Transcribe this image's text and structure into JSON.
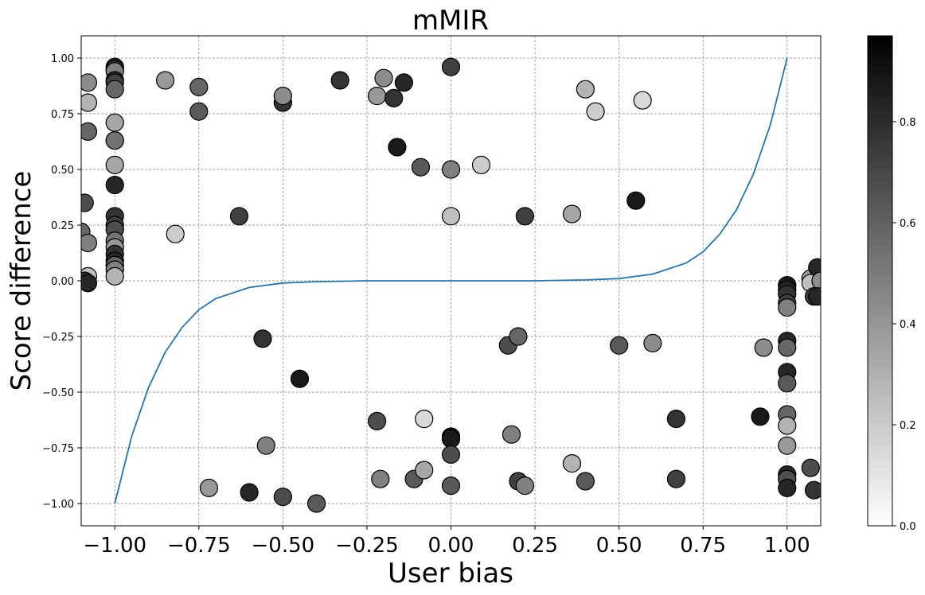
{
  "chart_data": {
    "type": "scatter",
    "title": "mMIR",
    "xlabel": "User bias",
    "ylabel": "Score difference",
    "xlim": [
      -1.1,
      1.1
    ],
    "ylim": [
      -1.1,
      1.1
    ],
    "xticks": [
      -1.0,
      -0.75,
      -0.5,
      -0.25,
      0.0,
      0.25,
      0.5,
      0.75,
      1.0
    ],
    "xtick_labels": [
      "−1.00",
      "−0.75",
      "−0.50",
      "−0.25",
      "0.00",
      "0.25",
      "0.50",
      "0.75",
      "1.00"
    ],
    "yticks": [
      1.0,
      0.75,
      0.5,
      0.25,
      0.0,
      -0.25,
      -0.5,
      -0.75,
      -1.0
    ],
    "ytick_labels": [
      "1.00",
      "0.75",
      "0.50",
      "0.25",
      "0.00",
      "−0.25",
      "−0.50",
      "−0.75",
      "−1.00"
    ],
    "grid": true,
    "colorbar": {
      "range": [
        0.0,
        0.97
      ],
      "colormap": "Greys",
      "ticks": [
        0.0,
        0.2,
        0.4,
        0.6,
        0.8
      ],
      "tick_labels": [
        "0.0",
        "0.2",
        "0.4",
        "0.6",
        "0.8"
      ]
    },
    "curve": {
      "color": "#1f77b4",
      "x_range": [
        -1.0,
        1.0
      ],
      "points": [
        [
          -1.0,
          -1.0
        ],
        [
          -0.95,
          -0.7
        ],
        [
          -0.9,
          -0.48
        ],
        [
          -0.85,
          -0.32
        ],
        [
          -0.8,
          -0.21
        ],
        [
          -0.75,
          -0.13
        ],
        [
          -0.7,
          -0.08
        ],
        [
          -0.6,
          -0.03
        ],
        [
          -0.5,
          -0.01
        ],
        [
          -0.4,
          -0.004
        ],
        [
          -0.25,
          0.0
        ],
        [
          0.0,
          0.0
        ],
        [
          0.25,
          0.0
        ],
        [
          0.4,
          0.004
        ],
        [
          0.5,
          0.01
        ],
        [
          0.6,
          0.03
        ],
        [
          0.7,
          0.08
        ],
        [
          0.75,
          0.13
        ],
        [
          0.8,
          0.21
        ],
        [
          0.85,
          0.32
        ],
        [
          0.9,
          0.48
        ],
        [
          0.95,
          0.7
        ],
        [
          1.0,
          1.0
        ]
      ]
    },
    "points": [
      {
        "x": -1.0,
        "y": 0.96,
        "c": 0.85
      },
      {
        "x": -1.0,
        "y": 0.95,
        "c": 0.8
      },
      {
        "x": -1.0,
        "y": 0.94,
        "c": 0.5
      },
      {
        "x": -1.0,
        "y": 0.9,
        "c": 0.85
      },
      {
        "x": -1.0,
        "y": 0.89,
        "c": 0.75
      },
      {
        "x": -1.0,
        "y": 0.86,
        "c": 0.6
      },
      {
        "x": -1.0,
        "y": 0.71,
        "c": 0.35
      },
      {
        "x": -1.0,
        "y": 0.63,
        "c": 0.75
      },
      {
        "x": -1.0,
        "y": 0.63,
        "c": 0.55
      },
      {
        "x": -1.0,
        "y": 0.52,
        "c": 0.35
      },
      {
        "x": -1.0,
        "y": 0.43,
        "c": 0.85
      },
      {
        "x": -1.0,
        "y": 0.29,
        "c": 0.8
      },
      {
        "x": -1.0,
        "y": 0.25,
        "c": 0.75
      },
      {
        "x": -1.0,
        "y": 0.23,
        "c": 0.7
      },
      {
        "x": -1.0,
        "y": 0.18,
        "c": 0.55
      },
      {
        "x": -1.0,
        "y": 0.15,
        "c": 0.4
      },
      {
        "x": -1.0,
        "y": 0.12,
        "c": 0.8
      },
      {
        "x": -1.0,
        "y": 0.09,
        "c": 0.85
      },
      {
        "x": -1.0,
        "y": 0.07,
        "c": 0.6
      },
      {
        "x": -1.0,
        "y": 0.05,
        "c": 0.5
      },
      {
        "x": -1.0,
        "y": 0.02,
        "c": 0.3
      },
      {
        "x": -1.08,
        "y": 0.89,
        "c": 0.45
      },
      {
        "x": -1.08,
        "y": 0.8,
        "c": 0.3
      },
      {
        "x": -1.08,
        "y": 0.67,
        "c": 0.6
      },
      {
        "x": -1.09,
        "y": 0.35,
        "c": 0.7
      },
      {
        "x": -1.1,
        "y": 0.22,
        "c": 0.6
      },
      {
        "x": -1.08,
        "y": 0.17,
        "c": 0.5
      },
      {
        "x": -1.08,
        "y": 0.02,
        "c": 0.25
      },
      {
        "x": -1.09,
        "y": 0.0,
        "c": 0.8
      },
      {
        "x": -1.08,
        "y": -0.01,
        "c": 0.85
      },
      {
        "x": -0.85,
        "y": 0.9,
        "c": 0.4
      },
      {
        "x": -0.82,
        "y": 0.21,
        "c": 0.2
      },
      {
        "x": -0.75,
        "y": 0.87,
        "c": 0.6
      },
      {
        "x": -0.75,
        "y": 0.76,
        "c": 0.65
      },
      {
        "x": -0.63,
        "y": 0.29,
        "c": 0.75
      },
      {
        "x": -0.5,
        "y": 0.8,
        "c": 0.8
      },
      {
        "x": -0.5,
        "y": 0.83,
        "c": 0.45
      },
      {
        "x": -0.33,
        "y": 0.9,
        "c": 0.8
      },
      {
        "x": -0.22,
        "y": 0.83,
        "c": 0.4
      },
      {
        "x": -0.2,
        "y": 0.91,
        "c": 0.45
      },
      {
        "x": -0.17,
        "y": 0.82,
        "c": 0.8
      },
      {
        "x": -0.14,
        "y": 0.89,
        "c": 0.85
      },
      {
        "x": -0.16,
        "y": 0.6,
        "c": 0.9
      },
      {
        "x": -0.09,
        "y": 0.51,
        "c": 0.65
      },
      {
        "x": 0.0,
        "y": 0.96,
        "c": 0.75
      },
      {
        "x": 0.0,
        "y": 0.5,
        "c": 0.5
      },
      {
        "x": 0.0,
        "y": 0.29,
        "c": 0.25
      },
      {
        "x": 0.09,
        "y": 0.52,
        "c": 0.2
      },
      {
        "x": 0.22,
        "y": 0.29,
        "c": 0.75
      },
      {
        "x": 0.36,
        "y": 0.3,
        "c": 0.35
      },
      {
        "x": 0.4,
        "y": 0.86,
        "c": 0.3
      },
      {
        "x": 0.43,
        "y": 0.76,
        "c": 0.2
      },
      {
        "x": 0.55,
        "y": 0.36,
        "c": 0.9
      },
      {
        "x": 0.57,
        "y": 0.81,
        "c": 0.15
      },
      {
        "x": -0.56,
        "y": -0.26,
        "c": 0.8
      },
      {
        "x": -0.45,
        "y": -0.44,
        "c": 0.9
      },
      {
        "x": -0.72,
        "y": -0.93,
        "c": 0.4
      },
      {
        "x": -0.6,
        "y": -0.95,
        "c": 0.85
      },
      {
        "x": -0.55,
        "y": -0.74,
        "c": 0.5
      },
      {
        "x": -0.5,
        "y": -0.97,
        "c": 0.7
      },
      {
        "x": -0.4,
        "y": -1.0,
        "c": 0.65
      },
      {
        "x": -0.22,
        "y": -0.63,
        "c": 0.7
      },
      {
        "x": -0.21,
        "y": -0.89,
        "c": 0.5
      },
      {
        "x": -0.11,
        "y": -0.89,
        "c": 0.65
      },
      {
        "x": -0.08,
        "y": -0.85,
        "c": 0.35
      },
      {
        "x": -0.08,
        "y": -0.62,
        "c": 0.15
      },
      {
        "x": 0.0,
        "y": -0.7,
        "c": 0.95
      },
      {
        "x": 0.0,
        "y": -0.71,
        "c": 0.9
      },
      {
        "x": 0.0,
        "y": -0.78,
        "c": 0.7
      },
      {
        "x": 0.0,
        "y": -0.92,
        "c": 0.65
      },
      {
        "x": 0.17,
        "y": -0.29,
        "c": 0.7
      },
      {
        "x": 0.2,
        "y": -0.25,
        "c": 0.6
      },
      {
        "x": 0.18,
        "y": -0.69,
        "c": 0.5
      },
      {
        "x": 0.2,
        "y": -0.9,
        "c": 0.75
      },
      {
        "x": 0.22,
        "y": -0.92,
        "c": 0.5
      },
      {
        "x": 0.36,
        "y": -0.82,
        "c": 0.3
      },
      {
        "x": 0.4,
        "y": -0.9,
        "c": 0.65
      },
      {
        "x": 0.5,
        "y": -0.29,
        "c": 0.65
      },
      {
        "x": 0.6,
        "y": -0.28,
        "c": 0.45
      },
      {
        "x": 0.67,
        "y": -0.62,
        "c": 0.8
      },
      {
        "x": 0.67,
        "y": -0.89,
        "c": 0.75
      },
      {
        "x": 0.92,
        "y": -0.61,
        "c": 0.9
      },
      {
        "x": 0.93,
        "y": -0.3,
        "c": 0.45
      },
      {
        "x": 1.0,
        "y": -0.02,
        "c": 0.9
      },
      {
        "x": 1.0,
        "y": -0.04,
        "c": 0.85
      },
      {
        "x": 1.0,
        "y": -0.06,
        "c": 0.8
      },
      {
        "x": 1.0,
        "y": -0.1,
        "c": 0.75
      },
      {
        "x": 1.0,
        "y": -0.12,
        "c": 0.5
      },
      {
        "x": 1.0,
        "y": -0.27,
        "c": 0.85
      },
      {
        "x": 1.0,
        "y": -0.3,
        "c": 0.6
      },
      {
        "x": 1.0,
        "y": -0.41,
        "c": 0.85
      },
      {
        "x": 1.0,
        "y": -0.46,
        "c": 0.65
      },
      {
        "x": 1.0,
        "y": -0.6,
        "c": 0.6
      },
      {
        "x": 1.0,
        "y": -0.65,
        "c": 0.3
      },
      {
        "x": 1.0,
        "y": -0.74,
        "c": 0.4
      },
      {
        "x": 1.0,
        "y": -0.87,
        "c": 0.85
      },
      {
        "x": 1.0,
        "y": -0.89,
        "c": 0.7
      },
      {
        "x": 1.0,
        "y": -0.93,
        "c": 0.85
      },
      {
        "x": 1.07,
        "y": 0.01,
        "c": 0.35
      },
      {
        "x": 1.07,
        "y": -0.01,
        "c": 0.25
      },
      {
        "x": 1.09,
        "y": 0.06,
        "c": 0.85
      },
      {
        "x": 1.1,
        "y": 0.0,
        "c": 0.45
      },
      {
        "x": 1.08,
        "y": -0.07,
        "c": 0.75
      },
      {
        "x": 1.09,
        "y": -0.07,
        "c": 0.85
      },
      {
        "x": 1.07,
        "y": -0.84,
        "c": 0.7
      },
      {
        "x": 1.08,
        "y": -0.94,
        "c": 0.8
      }
    ]
  }
}
